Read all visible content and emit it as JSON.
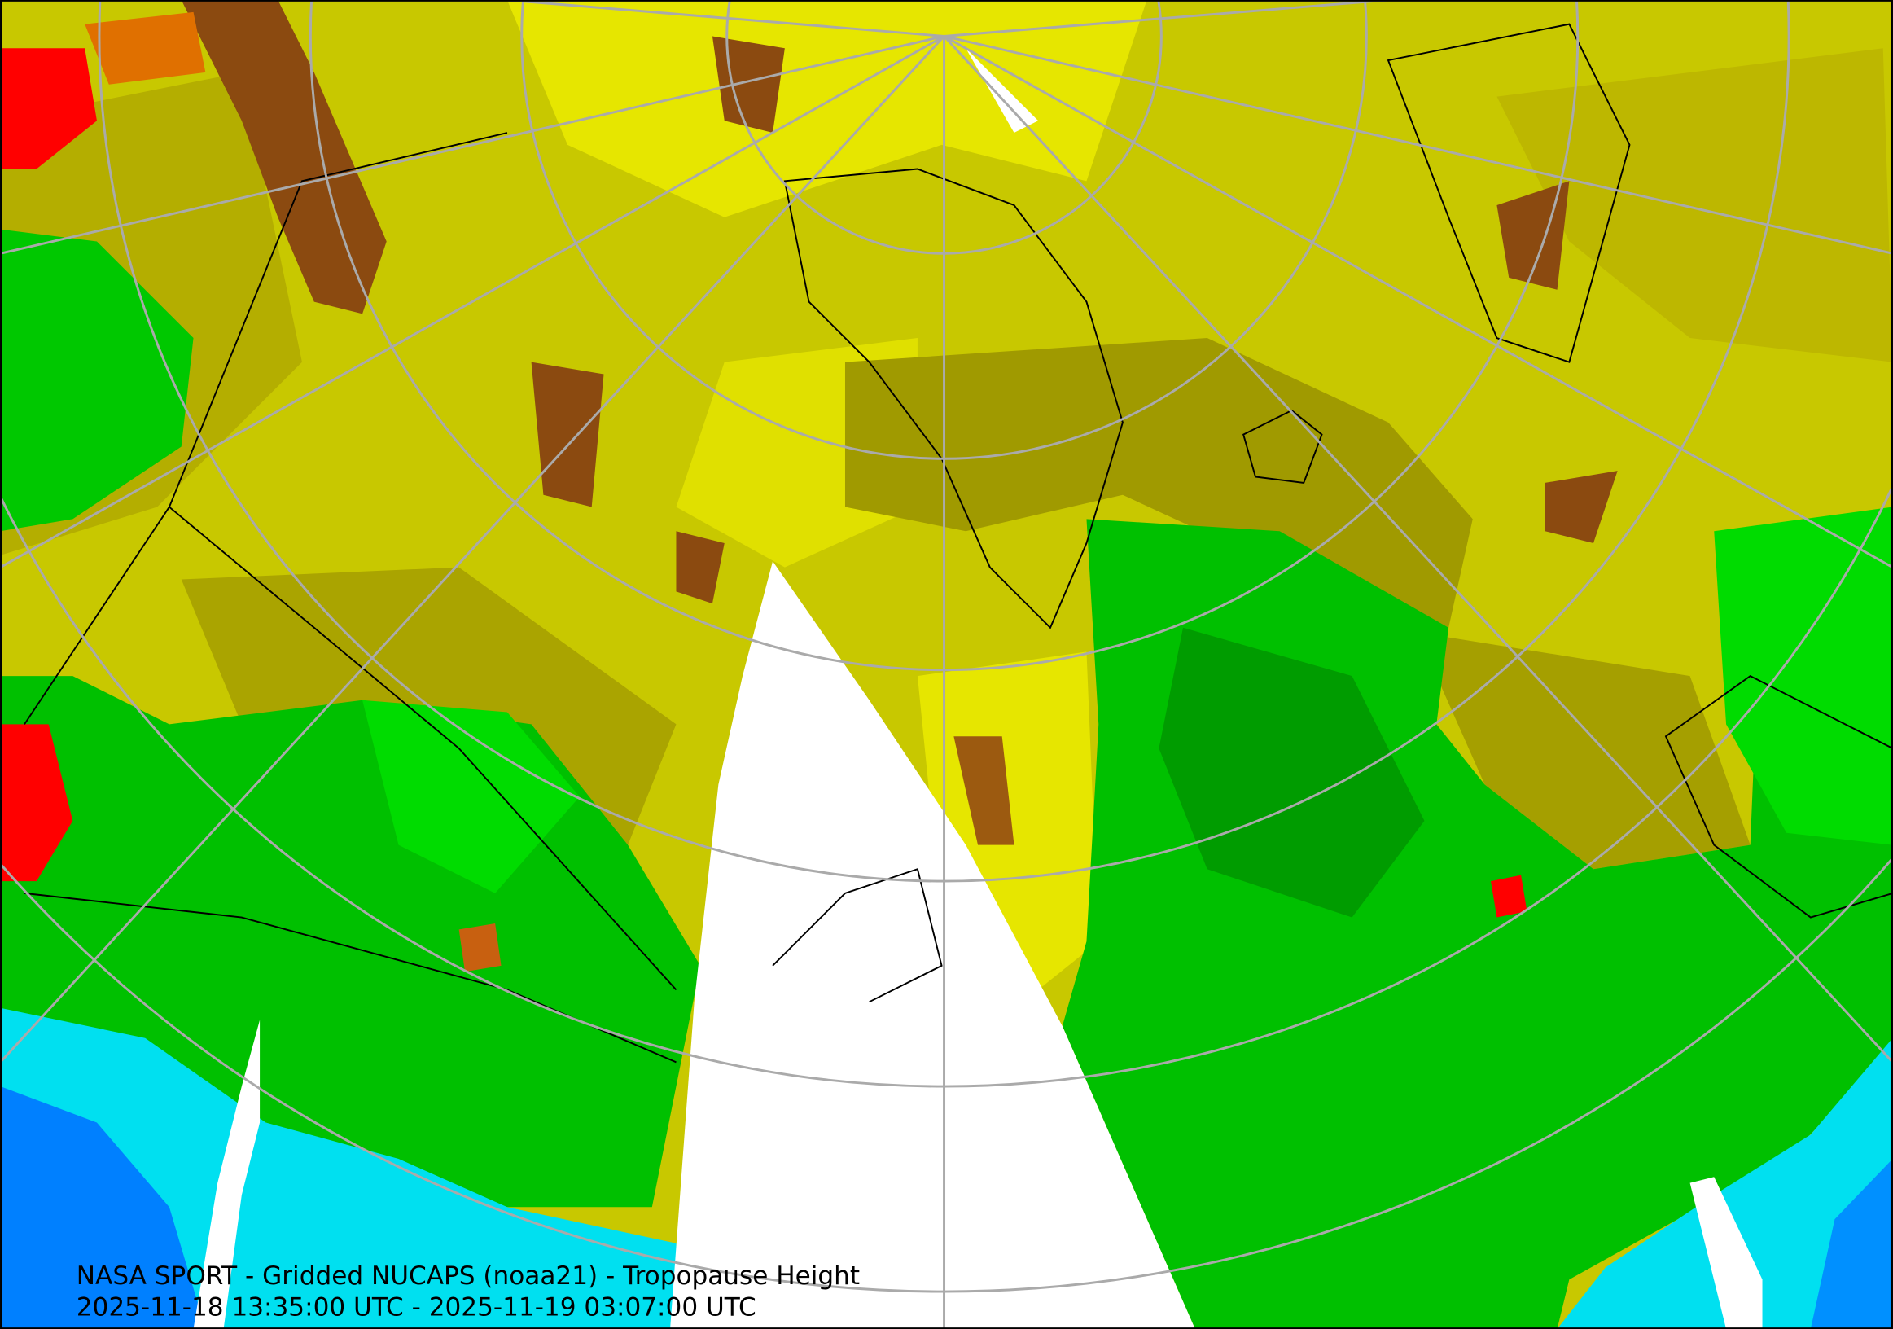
{
  "caption": {
    "title": "NASA SPORT - Gridded NUCAPS (noaa21) - Tropopause Height",
    "time_range": "2025-11-18 13:35:00 UTC - 2025-11-19 03:07:00 UTC"
  }
}
